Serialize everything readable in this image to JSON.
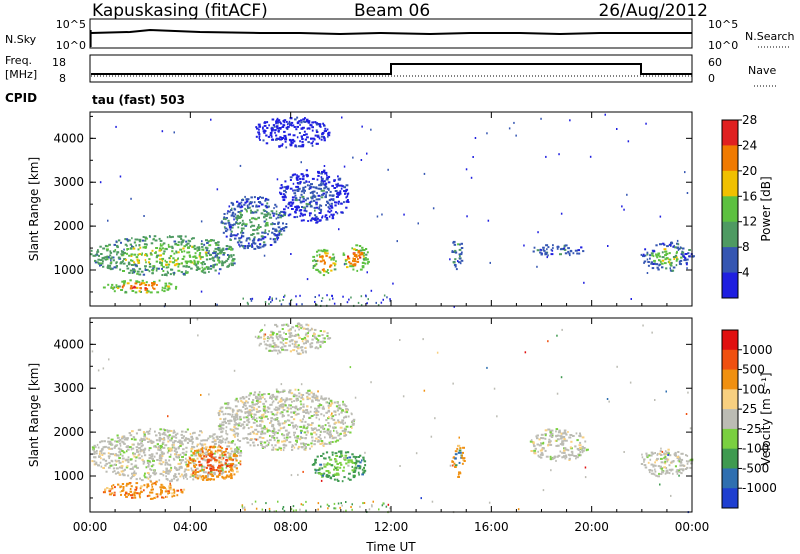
{
  "header": {
    "station": "Kapuskasing (fitACF)",
    "beam": "Beam 06",
    "date": "26/Aug/2012"
  },
  "strip": {
    "nsky_label": "N.Sky",
    "nsky_ticks": [
      "10^5",
      "10^0"
    ],
    "nsearch_label": "N.Search",
    "nsearch_ticks": [
      "10^5",
      "10^0"
    ],
    "freq_label": "Freq.",
    "freq_unit": "[MHz]",
    "freq_ticks": [
      "18",
      "8"
    ],
    "nave_label": "Nave",
    "nave_ticks": [
      "60",
      "0"
    ],
    "cpid_label": "CPID",
    "cpid_text": "tau (fast) 503"
  },
  "panels": {
    "ylabel": "Slant Range [km]",
    "xlabel": "Time UT",
    "x_ticks": [
      "00:00",
      "04:00",
      "08:00",
      "12:00",
      "16:00",
      "20:00",
      "00:00"
    ],
    "y_ticks": [
      "1000",
      "2000",
      "3000",
      "4000"
    ]
  },
  "chart_data": [
    {
      "type": "heatmap",
      "quantity": "Power",
      "colorbar_label": "Power [dB]",
      "colorbar_ticks": [
        "4",
        "8",
        "12",
        "16",
        "20",
        "24",
        "28"
      ],
      "colors": [
        "#1f1fe0",
        "#3556b2",
        "#4e9a62",
        "#5cc040",
        "#f0c000",
        "#f07a00",
        "#e02020"
      ],
      "xlim": [
        0,
        24
      ],
      "ylim": [
        180,
        4600
      ],
      "regions": [
        {
          "t0": 0.0,
          "t1": 5.9,
          "r0": 900,
          "r1": 1800,
          "level": 2,
          "core": 3
        },
        {
          "t0": 0.5,
          "t1": 3.5,
          "r0": 500,
          "r1": 800,
          "level": 3,
          "core": 5
        },
        {
          "t0": 5.2,
          "t1": 7.8,
          "r0": 1500,
          "r1": 2700,
          "level": 1,
          "core": 2
        },
        {
          "t0": 7.5,
          "t1": 10.3,
          "r0": 2100,
          "r1": 3300,
          "level": 0,
          "core": 1
        },
        {
          "t0": 6.5,
          "t1": 9.5,
          "r0": 3800,
          "r1": 4500,
          "level": 0,
          "core": 0
        },
        {
          "t0": 8.8,
          "t1": 9.8,
          "r0": 900,
          "r1": 1500,
          "level": 3,
          "core": 5
        },
        {
          "t0": 10.0,
          "t1": 11.1,
          "r0": 1000,
          "r1": 1600,
          "level": 3,
          "core": 5
        },
        {
          "t0": 14.4,
          "t1": 14.8,
          "r0": 1000,
          "r1": 1800,
          "level": 1,
          "core": 2
        },
        {
          "t0": 17.5,
          "t1": 19.8,
          "r0": 1350,
          "r1": 1600,
          "level": 1,
          "core": 1
        },
        {
          "t0": 21.9,
          "t1": 24.0,
          "r0": 1000,
          "r1": 1650,
          "level": 1,
          "core": 3
        }
      ]
    },
    {
      "type": "heatmap",
      "quantity": "Velocity",
      "colorbar_label": "Velocity [m s⁻¹]",
      "colorbar_ticks": [
        "1000",
        "500",
        "100",
        "25",
        "-25",
        "-100",
        "-500",
        "-1000"
      ],
      "colors": [
        "#1f3fd0",
        "#2f6fb0",
        "#3f9a50",
        "#7ad040",
        "#bcbcb4",
        "#f8d080",
        "#f09010",
        "#f05010",
        "#e01010"
      ],
      "xlim": [
        0,
        24
      ],
      "ylim": [
        180,
        4600
      ],
      "regions": [
        {
          "t0": 0.0,
          "t1": 6.0,
          "r0": 900,
          "r1": 2100,
          "level": 4,
          "core": 4
        },
        {
          "t0": 3.8,
          "t1": 6.0,
          "r0": 900,
          "r1": 1700,
          "level": 6,
          "core": 7
        },
        {
          "t0": 0.5,
          "t1": 3.8,
          "r0": 500,
          "r1": 900,
          "level": 6,
          "core": 6
        },
        {
          "t0": 5.0,
          "t1": 10.5,
          "r0": 1600,
          "r1": 3000,
          "level": 4,
          "core": 4
        },
        {
          "t0": 8.8,
          "t1": 11.0,
          "r0": 900,
          "r1": 1600,
          "level": 2,
          "core": 3
        },
        {
          "t0": 6.5,
          "t1": 9.5,
          "r0": 3800,
          "r1": 4500,
          "level": 4,
          "core": 4
        },
        {
          "t0": 14.4,
          "t1": 14.9,
          "r0": 1000,
          "r1": 1800,
          "level": 6,
          "core": 1
        },
        {
          "t0": 17.5,
          "t1": 19.8,
          "r0": 1350,
          "r1": 2100,
          "level": 4,
          "core": 4
        },
        {
          "t0": 21.9,
          "t1": 24.0,
          "r0": 1000,
          "r1": 1650,
          "level": 4,
          "core": 4
        }
      ]
    }
  ]
}
